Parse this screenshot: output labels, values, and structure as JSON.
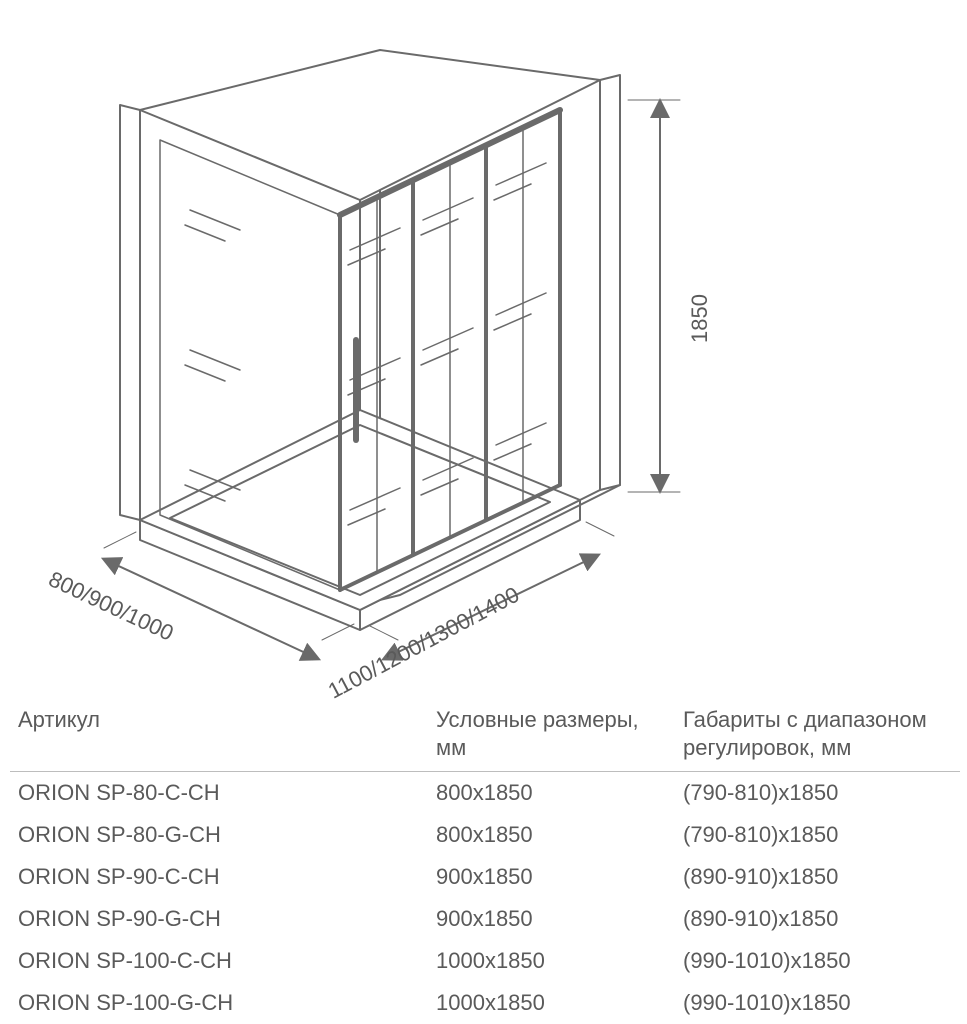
{
  "diagram": {
    "stroke": "#6a6a6a",
    "stroke_thin": "#8a8a8a",
    "height_label": "1850",
    "depth_label": "800/900/1000",
    "width_label": "1100/1200/1300/1400",
    "label_fontsize": 22,
    "label_color": "#5a5a5a"
  },
  "table": {
    "headers": {
      "article": "Артикул",
      "size": "Условные размеры, мм",
      "range": "Габариты с диапазоном регулировок, мм"
    },
    "rows": [
      {
        "article": "ORION SP-80-C-CH",
        "size": "800x1850",
        "range": "(790-810)x1850"
      },
      {
        "article": "ORION SP-80-G-CH",
        "size": "800x1850",
        "range": "(790-810)x1850"
      },
      {
        "article": "ORION SP-90-C-CH",
        "size": "900x1850",
        "range": "(890-910)x1850"
      },
      {
        "article": "ORION SP-90-G-CH",
        "size": "900x1850",
        "range": "(890-910)x1850"
      },
      {
        "article": "ORION SP-100-C-CH",
        "size": "1000x1850",
        "range": "(990-1010)x1850"
      },
      {
        "article": "ORION SP-100-G-CH",
        "size": "1000x1850",
        "range": "(990-1010)x1850"
      }
    ]
  }
}
